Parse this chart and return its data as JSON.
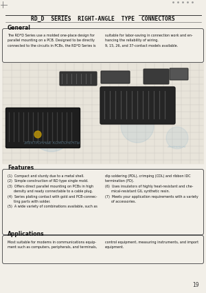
{
  "title": "RD‿D  SERIES  RIGHT-ANGLE  TYPE  CONNECTORS",
  "bg_color": "#f2efe8",
  "general_title": "General",
  "general_text_left": "The RD*D Series use a molded one-place design for\nparallel mounting on a PCB. Designed to be directly\nconnected to the circuits in PCBs, the RD*D Series is",
  "general_text_right": "suitable for labor-saving in connection work and en-\nhancing the reliability of wiring.\n9, 15, 26, and 37-contact models available.",
  "features_title": "Features",
  "feat_left": "(1)  Compact and sturdy due to a metal shell.\n(2)  Simple construction of RD type single mold.\n(3)  Offers direct parallel mounting on PCBs in high\n      density and ready connectable to a cable plug.\n(4)  Series plating contact with gold and PCB-connec-\n      ting parts with solder.\n(5)  A wide variety of combinations available, such as",
  "feat_right": "dip soldering (PDL), crimping (CDL) and ribbon IDC\ntermination (FD).\n(6)  Uses insulators of highly heat-resistant and che-\n      mical-resistant GIL synthetic resin.\n(7)  Meets your application requirements with a variety\n      of accessories.",
  "applications_title": "Applications",
  "app_left": "Most suitable for modems in communications equip-\nment such as computers, peripherals, and terminals,",
  "app_right": "control equipment, measuring instruments, and import\nequipment.",
  "page_number": "19",
  "img_bg": "#e8e4da",
  "grid_color": "#c8c4bc",
  "watermark_color": "#7aaac8"
}
